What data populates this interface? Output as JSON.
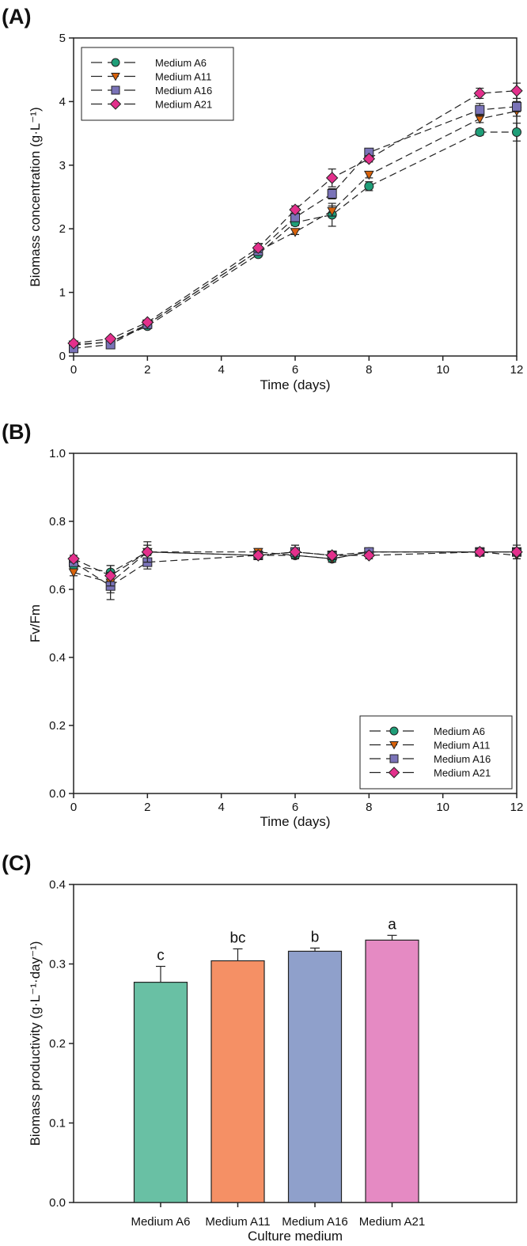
{
  "colors": {
    "A6": "#1f9e78",
    "A11": "#d9620a",
    "A16": "#7a73b8",
    "A21": "#e3308c",
    "bar_A6": "#69c0a4",
    "bar_A11": "#f59065",
    "bar_A16": "#8fa0cb",
    "bar_A21": "#e58ac3"
  },
  "chart_data": [
    {
      "panel": "(A)",
      "type": "line",
      "xlabel": "Time (days)",
      "ylabel": "Biomass concentration (g·L⁻¹)",
      "xlim": [
        0,
        12
      ],
      "ylim": [
        0,
        5
      ],
      "xticks": [
        0,
        2,
        4,
        6,
        8,
        10,
        12
      ],
      "yticks": [
        0,
        1,
        2,
        3,
        4,
        5
      ],
      "legend_position": "top-left",
      "x": [
        0,
        1,
        2,
        5,
        6,
        7,
        8,
        11,
        12
      ],
      "series": [
        {
          "name": "Medium A6",
          "key": "A6",
          "marker": "circle",
          "values": [
            0.17,
            0.22,
            0.47,
            1.6,
            2.1,
            2.22,
            2.67,
            3.52,
            3.52
          ],
          "errors": [
            0.03,
            0.03,
            0.03,
            0.04,
            0.05,
            0.18,
            0.07,
            0.05,
            0.14
          ]
        },
        {
          "name": "Medium A11",
          "key": "A11",
          "marker": "triangle-down",
          "values": [
            0.18,
            0.22,
            0.5,
            1.65,
            1.95,
            2.28,
            2.85,
            3.73,
            3.85
          ],
          "errors": [
            0.03,
            0.03,
            0.03,
            0.04,
            0.04,
            0.08,
            0.05,
            0.06,
            0.08
          ]
        },
        {
          "name": "Medium A16",
          "key": "A16",
          "marker": "square",
          "values": [
            0.12,
            0.18,
            0.5,
            1.65,
            2.18,
            2.55,
            3.2,
            3.87,
            3.92
          ],
          "errors": [
            0.03,
            0.03,
            0.03,
            0.05,
            0.06,
            0.08,
            0.05,
            0.1,
            0.08
          ]
        },
        {
          "name": "Medium A21",
          "key": "A21",
          "marker": "diamond",
          "values": [
            0.2,
            0.27,
            0.53,
            1.7,
            2.3,
            2.8,
            3.1,
            4.13,
            4.17
          ],
          "errors": [
            0.03,
            0.03,
            0.03,
            0.07,
            0.06,
            0.14,
            0.05,
            0.08,
            0.12
          ]
        }
      ]
    },
    {
      "panel": "(B)",
      "type": "line",
      "xlabel": "Time (days)",
      "ylabel": "Fv/Fm",
      "xlim": [
        0,
        12
      ],
      "ylim": [
        0,
        1.0
      ],
      "xticks": [
        0,
        2,
        4,
        6,
        8,
        10,
        12
      ],
      "yticks": [
        "0.0",
        "0.2",
        "0.4",
        "0.6",
        "0.8",
        "1.0"
      ],
      "legend_position": "bottom-right",
      "x": [
        0,
        1,
        2,
        5,
        6,
        7,
        8,
        11,
        12
      ],
      "series": [
        {
          "name": "Medium A6",
          "key": "A6",
          "marker": "circle",
          "values": [
            0.67,
            0.65,
            0.71,
            0.7,
            0.7,
            0.69,
            0.71,
            0.71,
            0.71
          ],
          "errors": [
            0.01,
            0.02,
            0.02,
            0.01,
            0.01,
            0.01,
            0.01,
            0.01,
            0.01
          ]
        },
        {
          "name": "Medium A11",
          "key": "A11",
          "marker": "triangle-down",
          "values": [
            0.65,
            0.62,
            0.71,
            0.71,
            0.7,
            0.69,
            0.71,
            0.71,
            0.7
          ],
          "errors": [
            0.01,
            0.03,
            0.02,
            0.01,
            0.01,
            0.01,
            0.01,
            0.01,
            0.01
          ]
        },
        {
          "name": "Medium A16",
          "key": "A16",
          "marker": "square",
          "values": [
            0.68,
            0.61,
            0.68,
            0.7,
            0.71,
            0.7,
            0.71,
            0.71,
            0.71
          ],
          "errors": [
            0.01,
            0.04,
            0.02,
            0.01,
            0.02,
            0.01,
            0.01,
            0.01,
            0.02
          ]
        },
        {
          "name": "Medium A21",
          "key": "A21",
          "marker": "diamond",
          "values": [
            0.69,
            0.64,
            0.71,
            0.7,
            0.71,
            0.7,
            0.7,
            0.71,
            0.71
          ],
          "errors": [
            0.01,
            0.03,
            0.03,
            0.01,
            0.02,
            0.01,
            0.01,
            0.01,
            0.01
          ]
        }
      ]
    },
    {
      "panel": "(C)",
      "type": "bar",
      "xlabel": "Culture medium",
      "ylabel": "Biomass productivity (g·L⁻¹·day⁻¹)",
      "ylim": [
        0,
        0.4
      ],
      "yticks": [
        "0.0",
        "0.1",
        "0.2",
        "0.3",
        "0.4"
      ],
      "categories": [
        "Medium A6",
        "Medium A11",
        "Medium A16",
        "Medium A21"
      ],
      "keys": [
        "bar_A6",
        "bar_A11",
        "bar_A16",
        "bar_A21"
      ],
      "values": [
        0.277,
        0.304,
        0.316,
        0.33
      ],
      "errors": [
        0.02,
        0.015,
        0.004,
        0.006
      ],
      "letters": [
        "c",
        "bc",
        "b",
        "a"
      ]
    }
  ]
}
